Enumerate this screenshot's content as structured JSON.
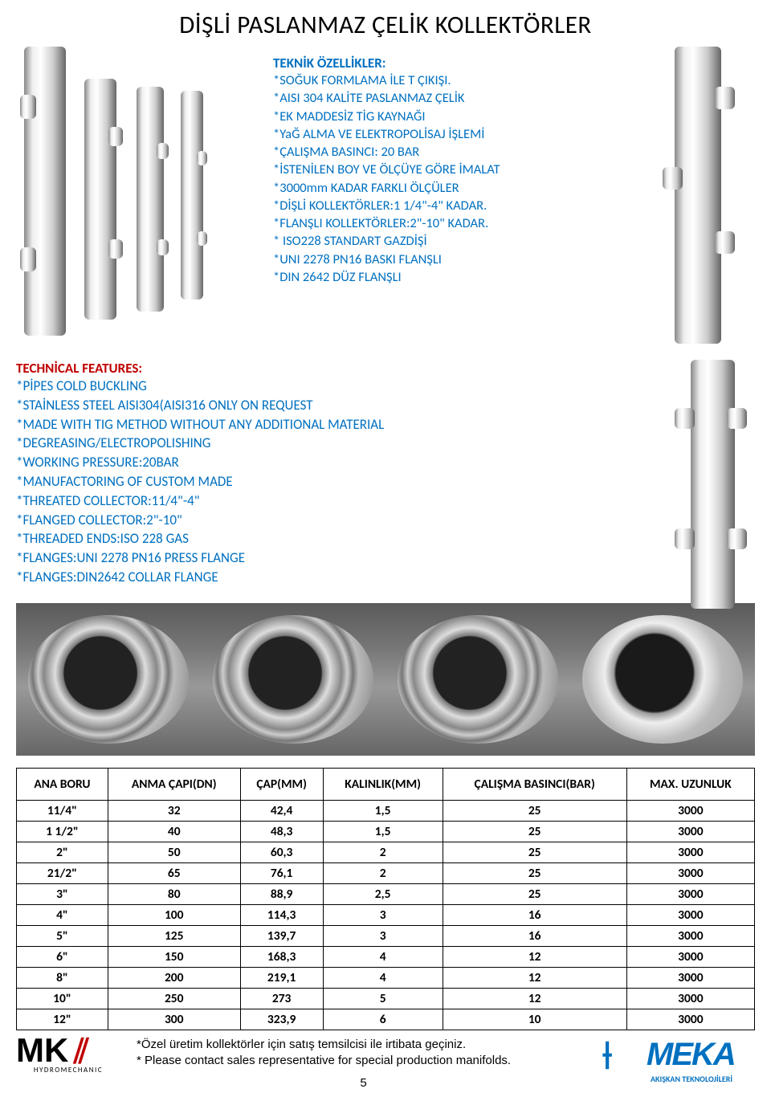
{
  "title": "DİŞLİ PASLANMAZ ÇELİK KOLLEKTÖRLER",
  "teknik": {
    "heading": "TEKNİK ÖZELLİKLER:",
    "lines": [
      "*SOĞUK FORMLAMA İLE  T ÇIKIŞI.",
      "*AISI 304 KALİTE PASLANMAZ ÇELİK",
      "*EK MADDESİZ TİG KAYNAĞI",
      "*YaĞ ALMA VE ELEKTROPOLİSAJ İŞLEMİ",
      "*ÇALIŞMA BASINCI: 20 BAR",
      "*İSTENİLEN BOY VE ÖLÇÜYE GÖRE İMALAT",
      "*3000mm KADAR FARKLI ÖLÇÜLER",
      "*DİŞLİ KOLLEKTÖRLER:1 1/4\"-4\" KADAR.",
      "*FLANŞLI KOLLEKTÖRLER:2\"-10\" KADAR.",
      "* ISO228 STANDART GAZDİŞİ",
      "*UNI 2278 PN16 BASKI FLANŞLI",
      "*DIN 2642 DÜZ FLANŞLI"
    ]
  },
  "technical": {
    "heading": "TECHNİCAL FEATURES:",
    "lines": [
      "*PİPES COLD BUCKLING",
      "*STAİNLESS STEEL AISI304(AISI316 ONLY ON REQUEST",
      "*MADE WITH TIG METHOD WITHOUT ANY ADDITIONAL MATERIAL",
      "*DEGREASING/ELECTROPOLISHING",
      "*WORKING PRESSURE:20BAR",
      "*MANUFACTORING OF CUSTOM MADE",
      "*THREATED COLLECTOR:11/4\"-4\"",
      "*FLANGED COLLECTOR:2\"-10\"",
      "*THREADED ENDS:ISO 228 GAS",
      "*FLANGES:UNI 2278 PN16 PRESS FLANGE",
      "*FLANGES:DIN2642 COLLAR FLANGE"
    ]
  },
  "table": {
    "columns": [
      "ANA  BORU",
      "ANMA ÇAPI(DN)",
      "ÇAP(MM)",
      "KALINLIK(MM)",
      "ÇALIŞMA BASINCI(BAR)",
      "MAX. UZUNLUK"
    ],
    "rows": [
      [
        "11/4\"",
        "32",
        "42,4",
        "1,5",
        "25",
        "3000"
      ],
      [
        "1 1/2\"",
        "40",
        "48,3",
        "1,5",
        "25",
        "3000"
      ],
      [
        "2\"",
        "50",
        "60,3",
        "2",
        "25",
        "3000"
      ],
      [
        "21/2\"",
        "65",
        "76,1",
        "2",
        "25",
        "3000"
      ],
      [
        "3\"",
        "80",
        "88,9",
        "2,5",
        "25",
        "3000"
      ],
      [
        "4\"",
        "100",
        "114,3",
        "3",
        "16",
        "3000"
      ],
      [
        "5\"",
        "125",
        "139,7",
        "3",
        "16",
        "3000"
      ],
      [
        "6\"",
        "150",
        "168,3",
        "4",
        "12",
        "3000"
      ],
      [
        "8\"",
        "200",
        "219,1",
        "4",
        "12",
        "3000"
      ],
      [
        "10\"",
        "250",
        "273",
        "5",
        "12",
        "3000"
      ],
      [
        "12\"",
        "300",
        "323,9",
        "6",
        "10",
        "3000"
      ]
    ]
  },
  "footnotes": [
    "*Özel üretim kollektörler için satış temsilcisi ile irtibata geçiniz.",
    "* Please contact sales representative for special production manifolds."
  ],
  "page_number": "5",
  "logo_left": {
    "text": "MK",
    "sub": "HYDROMECHANIC"
  },
  "logo_right": {
    "text": "MEKA",
    "sub": "AKIŞKAN TEKNOLOJİLERİ"
  },
  "colors": {
    "blue": "#0070c0",
    "red": "#c00000",
    "black": "#000000",
    "white": "#ffffff"
  }
}
